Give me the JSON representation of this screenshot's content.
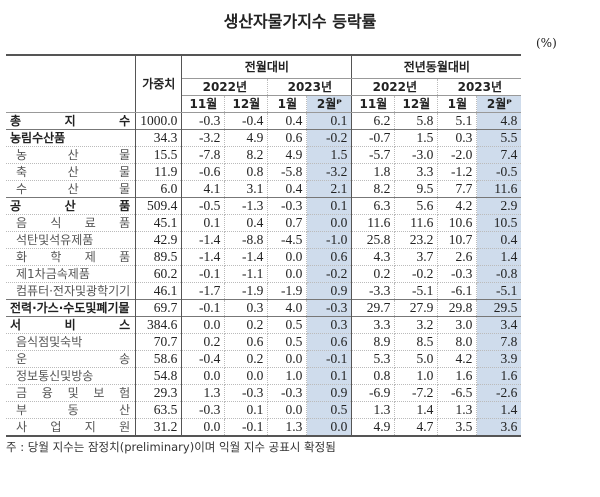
{
  "title": "생산자물가지수 등락률",
  "unit": "(%)",
  "header": {
    "weight": "가중치",
    "mom": "전월대비",
    "yoy": "전년동월대비",
    "y2022": "2022년",
    "y2023": "2023년",
    "months": [
      "11월",
      "12월",
      "1월",
      "2월ᴾ",
      "11월",
      "12월",
      "1월",
      "2월ᴾ"
    ]
  },
  "rows": [
    {
      "label": "총 지 수",
      "bold": true,
      "v": [
        "1000.0",
        "-0.3",
        "-0.4",
        "0.4",
        "0.1",
        "6.2",
        "5.8",
        "5.1",
        "4.8"
      ]
    },
    {
      "label": "농림수산품",
      "bold": true,
      "v": [
        "34.3",
        "-3.2",
        "4.9",
        "0.6",
        "-0.2",
        "-0.7",
        "1.5",
        "0.3",
        "5.5"
      ]
    },
    {
      "label": "농 산 물",
      "v": [
        "15.5",
        "-7.8",
        "8.2",
        "4.9",
        "1.5",
        "-5.7",
        "-3.0",
        "-2.0",
        "7.4"
      ]
    },
    {
      "label": "축 산 물",
      "v": [
        "11.9",
        "-0.6",
        "0.8",
        "-5.8",
        "-3.2",
        "1.8",
        "3.3",
        "-1.2",
        "-0.5"
      ]
    },
    {
      "label": "수 산 물",
      "v": [
        "6.0",
        "4.1",
        "3.1",
        "0.4",
        "2.1",
        "8.2",
        "9.5",
        "7.7",
        "11.6"
      ]
    },
    {
      "label": "공 산 품",
      "bold": true,
      "v": [
        "509.4",
        "-0.5",
        "-1.3",
        "-0.3",
        "0.1",
        "6.3",
        "5.6",
        "4.2",
        "2.9"
      ]
    },
    {
      "label": "음 식 료 품",
      "v": [
        "45.1",
        "0.1",
        "0.4",
        "0.7",
        "0.0",
        "11.6",
        "11.6",
        "10.6",
        "10.5"
      ]
    },
    {
      "label": "석탄및석유제품",
      "v": [
        "42.9",
        "-1.4",
        "-8.8",
        "-4.5",
        "-1.0",
        "25.8",
        "23.2",
        "10.7",
        "0.4"
      ]
    },
    {
      "label": "화 학 제 품",
      "v": [
        "89.5",
        "-1.4",
        "-1.4",
        "0.0",
        "0.6",
        "4.3",
        "3.7",
        "2.6",
        "1.4"
      ]
    },
    {
      "label": "제1차금속제품",
      "v": [
        "60.2",
        "-0.1",
        "-1.1",
        "0.0",
        "-0.2",
        "0.2",
        "-0.2",
        "-0.3",
        "-0.8"
      ]
    },
    {
      "label": "컴퓨터·전자및광학기기",
      "v": [
        "46.1",
        "-1.7",
        "-1.9",
        "-1.9",
        "0.9",
        "-3.3",
        "-5.1",
        "-6.1",
        "-5.1"
      ]
    },
    {
      "label": "전력·가스·수도및폐기물",
      "bold": true,
      "v": [
        "69.7",
        "-0.1",
        "0.3",
        "4.0",
        "-0.3",
        "29.7",
        "27.9",
        "29.8",
        "29.5"
      ]
    },
    {
      "label": "서 비 스",
      "bold": true,
      "v": [
        "384.6",
        "0.0",
        "0.2",
        "0.5",
        "0.3",
        "3.3",
        "3.2",
        "3.0",
        "3.4"
      ]
    },
    {
      "label": "음식점및숙박",
      "v": [
        "70.7",
        "0.2",
        "0.6",
        "0.5",
        "0.6",
        "8.9",
        "8.5",
        "8.0",
        "7.8"
      ]
    },
    {
      "label": "운 송",
      "v": [
        "58.6",
        "-0.4",
        "0.2",
        "0.0",
        "-0.1",
        "5.3",
        "5.0",
        "4.2",
        "3.9"
      ]
    },
    {
      "label": "정보통신및방송",
      "v": [
        "54.8",
        "0.0",
        "0.0",
        "1.0",
        "0.1",
        "0.8",
        "1.0",
        "1.6",
        "1.6"
      ]
    },
    {
      "label": "금 융 및 보 험",
      "v": [
        "29.3",
        "1.3",
        "-0.3",
        "-0.3",
        "0.9",
        "-6.9",
        "-7.2",
        "-6.5",
        "-2.6"
      ]
    },
    {
      "label": "부 동 산",
      "v": [
        "63.5",
        "-0.3",
        "0.1",
        "0.0",
        "0.5",
        "1.3",
        "1.4",
        "1.3",
        "1.4"
      ]
    },
    {
      "label": "사 업 지 원",
      "v": [
        "31.2",
        "0.0",
        "-0.1",
        "1.3",
        "0.0",
        "4.9",
        "4.7",
        "3.5",
        "3.6"
      ]
    }
  ],
  "footnote": "주 : 당월 지수는 잠정치(preliminary)이며 익월 지수 공표시 확정됨",
  "colors": {
    "highlight": "#cfdcec"
  }
}
